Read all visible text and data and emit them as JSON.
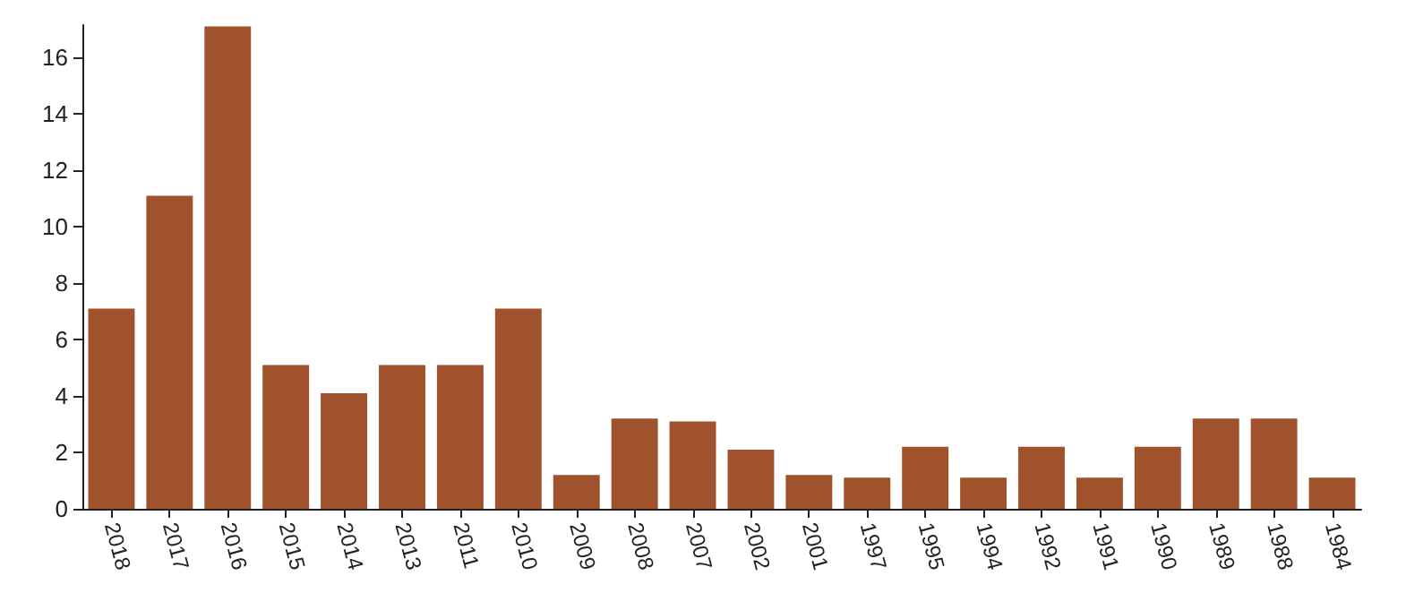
{
  "chart_data": {
    "type": "bar",
    "categories": [
      "2018",
      "2017",
      "2016",
      "2015",
      "2014",
      "2013",
      "2011",
      "2010",
      "2009",
      "2008",
      "2007",
      "2002",
      "2001",
      "1997",
      "1995",
      "1994",
      "1992",
      "1991",
      "1990",
      "1989",
      "1988",
      "1984"
    ],
    "values": [
      7.1,
      11.1,
      17.1,
      5.1,
      4.1,
      5.1,
      5.1,
      7.1,
      1.2,
      3.2,
      3.1,
      2.1,
      1.2,
      1.1,
      2.2,
      1.1,
      2.2,
      1.1,
      2.2,
      3.2,
      3.2,
      1.1
    ],
    "color": "#a0522d",
    "ylim": [
      0,
      17.15
    ],
    "yticks": [
      0,
      2,
      4,
      6,
      8,
      10,
      12,
      14,
      16
    ],
    "grid": false
  }
}
